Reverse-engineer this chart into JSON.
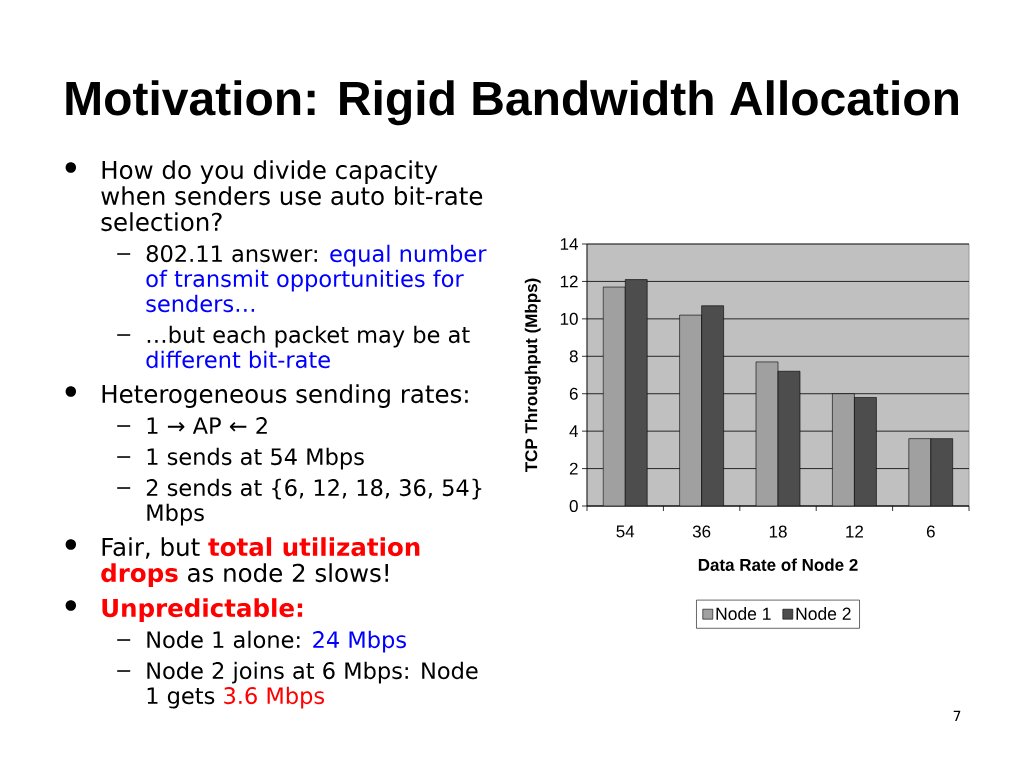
{
  "chart_data": {
    "type": "bar",
    "title": "Motivation: Rigid Bandwidth Allocation",
    "xlabel": "Data Rate of Node 2",
    "ylabel": "TCP Throughput (Mbps)",
    "categories": [
      "54",
      "36",
      "18",
      "12",
      "6"
    ],
    "series": [
      {
        "name": "Node 1",
        "color": "#a0a0a0",
        "values": [
          11.7,
          10.2,
          7.7,
          6.0,
          3.6
        ]
      },
      {
        "name": "Node 2",
        "color": "#4d4d4d",
        "values": [
          12.1,
          10.7,
          7.2,
          5.8,
          3.6
        ]
      }
    ],
    "ylim": [
      0,
      14
    ],
    "yticks": [
      0,
      2,
      4,
      6,
      8,
      10,
      12,
      14
    ],
    "grid": "y",
    "legend": "bottom",
    "annotations": [
      "•",
      "How do you divide capacity when senders use auto bit-rate selection?",
      "802.11 answer:",
      "equal number",
      "of transmit opportunities for senders…",
      "…but each packet may be at",
      "different bit-rate",
      "•",
      "Heterogeneous sending rates:",
      "1 → AP ← 2",
      "1 sends at 54 Mbps",
      "2 sends at {6, 12, 18, 36, 54} Mbps",
      "•",
      "Fair, but",
      "total utilization drops",
      "as node 2 slows!",
      "•",
      "Unpredictable:",
      "Node 1 alone:",
      "24 Mbps",
      "Node 2 joins at 6 Mbps: Node",
      "1 gets",
      "3.6 Mbps",
      "7"
    ]
  }
}
